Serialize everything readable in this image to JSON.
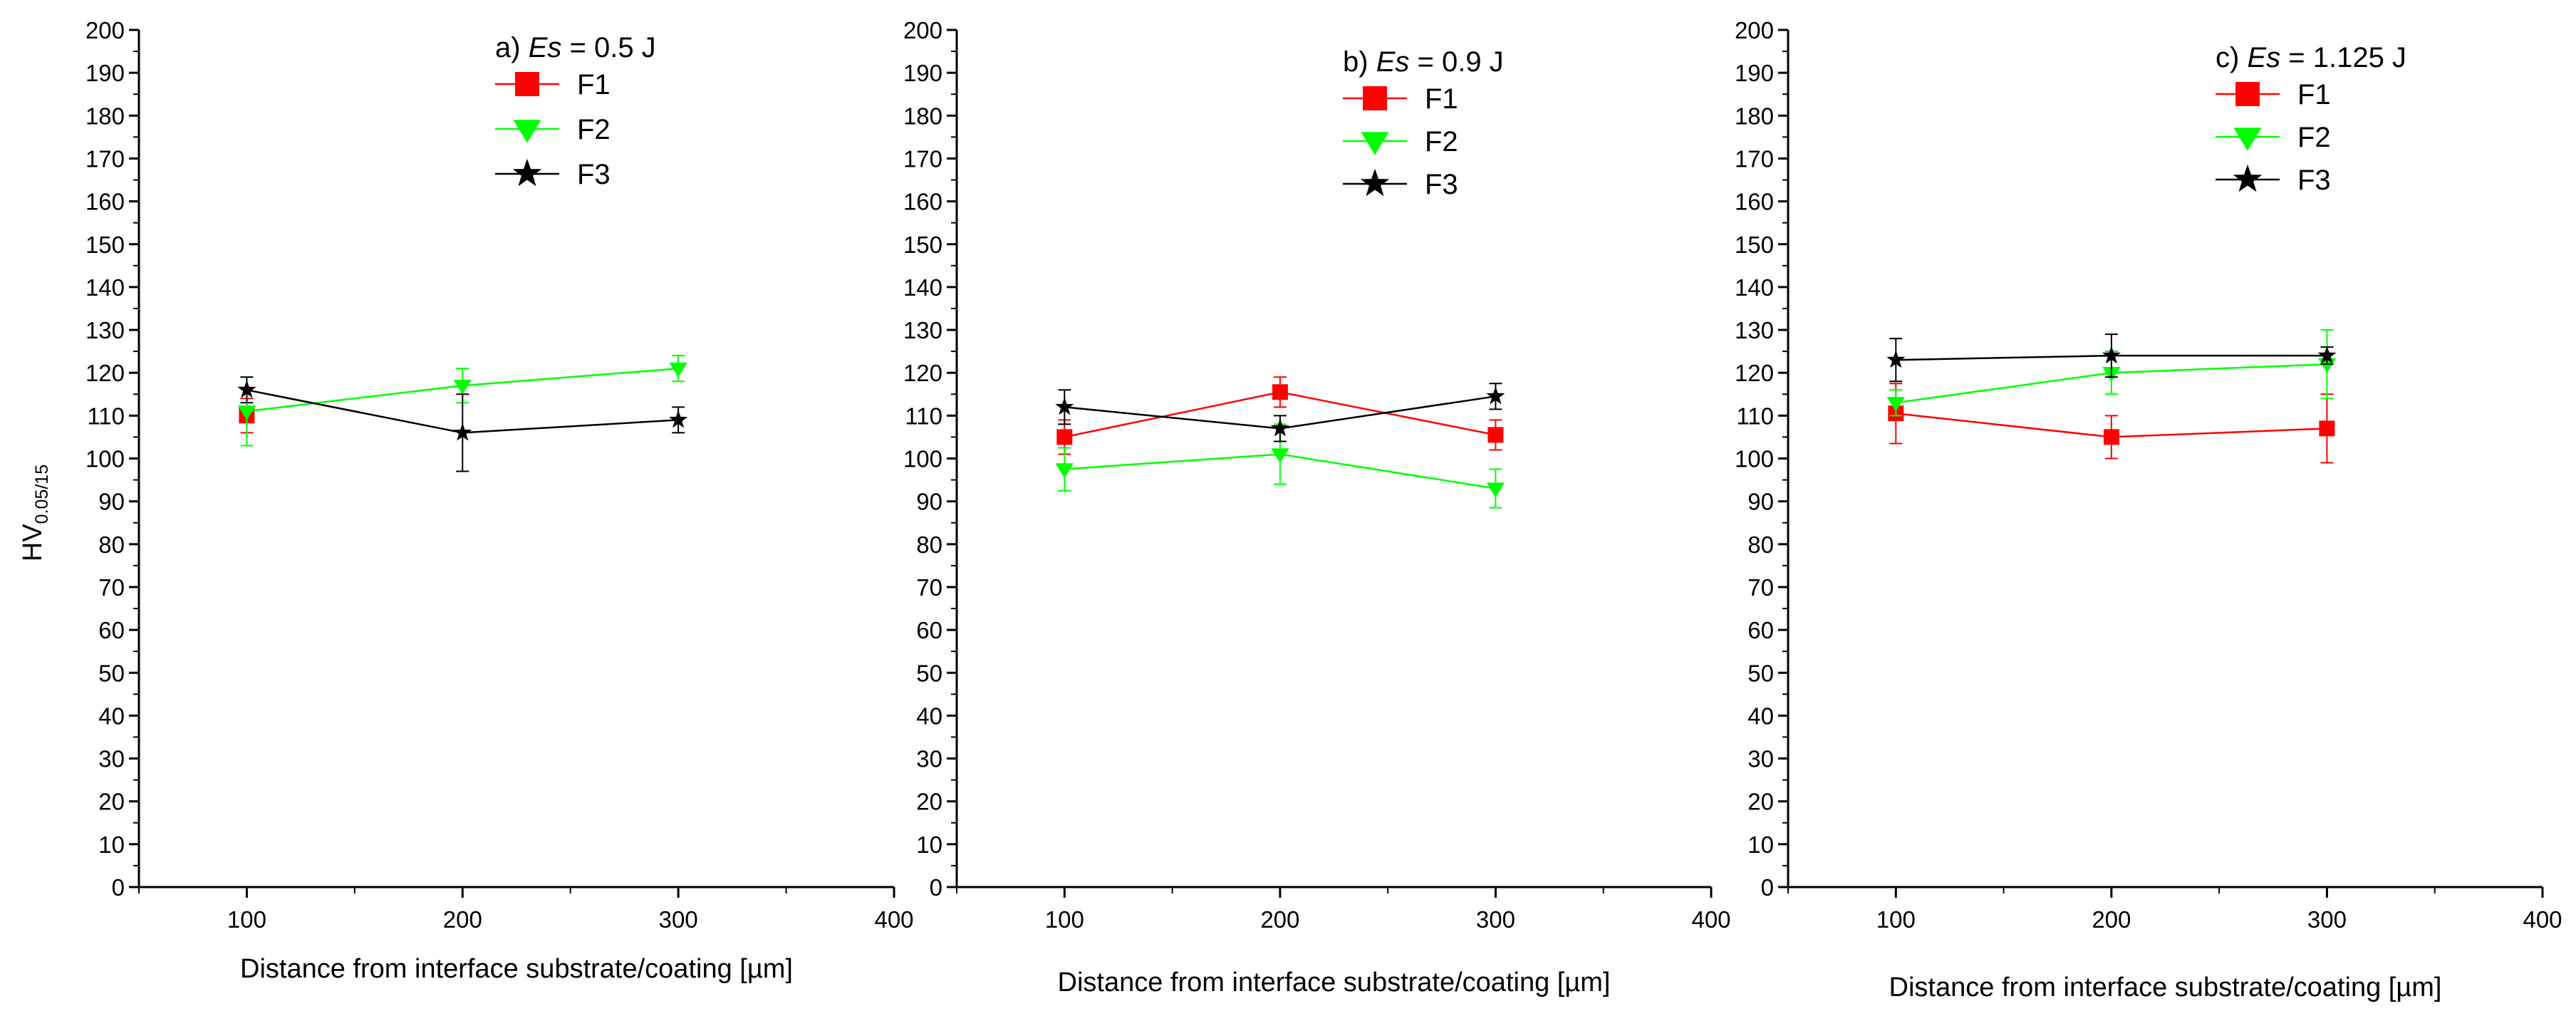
{
  "figure": {
    "ylabel_main": "HV",
    "ylabel_sub": "0.05/15"
  },
  "chart_data": [
    {
      "type": "line",
      "panel": "a",
      "title_prefix": "a) ",
      "title_symbol": "Es",
      "title_value": " = 0.5 J",
      "xlabel": "Distance from interface substrate/coating [µm]",
      "ylabel": "HV 0.05/15",
      "xlim": [
        50,
        400
      ],
      "ylim": [
        0,
        200
      ],
      "xticks": [
        100,
        200,
        300,
        400
      ],
      "yticks": [
        0,
        10,
        20,
        30,
        40,
        50,
        60,
        70,
        80,
        90,
        100,
        110,
        120,
        130,
        140,
        150,
        160,
        170,
        180,
        190,
        200
      ],
      "legend_position": "top-center",
      "series": [
        {
          "name": "F1",
          "color": "#ff0000",
          "marker": "square",
          "x": [
            100
          ],
          "y": [
            110
          ],
          "err": [
            4
          ]
        },
        {
          "name": "F2",
          "color": "#00ff00",
          "marker": "triangle-down",
          "x": [
            100,
            200,
            300
          ],
          "y": [
            111,
            117,
            121
          ],
          "err": [
            8,
            4,
            3
          ]
        },
        {
          "name": "F3",
          "color": "#000000",
          "marker": "star",
          "x": [
            100,
            200,
            300
          ],
          "y": [
            116,
            106,
            109
          ],
          "err": [
            3,
            9,
            3
          ]
        }
      ]
    },
    {
      "type": "line",
      "panel": "b",
      "title_prefix": "b) ",
      "title_symbol": "Es",
      "title_value": " = 0.9 J",
      "xlabel": "Distance from interface substrate/coating [µm]",
      "ylabel": "",
      "xlim": [
        50,
        400
      ],
      "ylim": [
        0,
        200
      ],
      "xticks": [
        100,
        200,
        300,
        400
      ],
      "yticks": [
        0,
        10,
        20,
        30,
        40,
        50,
        60,
        70,
        80,
        90,
        100,
        110,
        120,
        130,
        140,
        150,
        160,
        170,
        180,
        190,
        200
      ],
      "legend_position": "top-center",
      "series": [
        {
          "name": "F1",
          "color": "#ff0000",
          "marker": "square",
          "x": [
            100,
            200,
            300
          ],
          "y": [
            105,
            115.5,
            105.5
          ],
          "err": [
            4,
            3.5,
            3.5
          ]
        },
        {
          "name": "F2",
          "color": "#00ff00",
          "marker": "triangle-down",
          "x": [
            100,
            200,
            300
          ],
          "y": [
            97.5,
            101,
            93
          ],
          "err": [
            5,
            7,
            4.5
          ]
        },
        {
          "name": "F3",
          "color": "#000000",
          "marker": "star",
          "x": [
            100,
            200,
            300
          ],
          "y": [
            112,
            107,
            114.5
          ],
          "err": [
            4,
            3,
            3
          ]
        }
      ]
    },
    {
      "type": "line",
      "panel": "c",
      "title_prefix": "c) ",
      "title_symbol": "Es",
      "title_value": " = 1.125 J",
      "xlabel": "Distance from interface substrate/coating [µm]",
      "ylabel": "",
      "xlim": [
        50,
        400
      ],
      "ylim": [
        0,
        200
      ],
      "xticks": [
        100,
        200,
        300,
        400
      ],
      "yticks": [
        0,
        10,
        20,
        30,
        40,
        50,
        60,
        70,
        80,
        90,
        100,
        110,
        120,
        130,
        140,
        150,
        160,
        170,
        180,
        190,
        200
      ],
      "legend_position": "top-right",
      "series": [
        {
          "name": "F1",
          "color": "#ff0000",
          "marker": "square",
          "x": [
            100,
            200,
            300
          ],
          "y": [
            110.5,
            105,
            107
          ],
          "err": [
            7,
            5,
            8
          ]
        },
        {
          "name": "F2",
          "color": "#00ff00",
          "marker": "triangle-down",
          "x": [
            100,
            200,
            300
          ],
          "y": [
            113,
            120,
            122
          ],
          "err": [
            3,
            5,
            8
          ]
        },
        {
          "name": "F3",
          "color": "#000000",
          "marker": "star",
          "x": [
            100,
            200,
            300
          ],
          "y": [
            123,
            124,
            124
          ],
          "err": [
            5,
            5,
            2
          ]
        }
      ]
    }
  ]
}
